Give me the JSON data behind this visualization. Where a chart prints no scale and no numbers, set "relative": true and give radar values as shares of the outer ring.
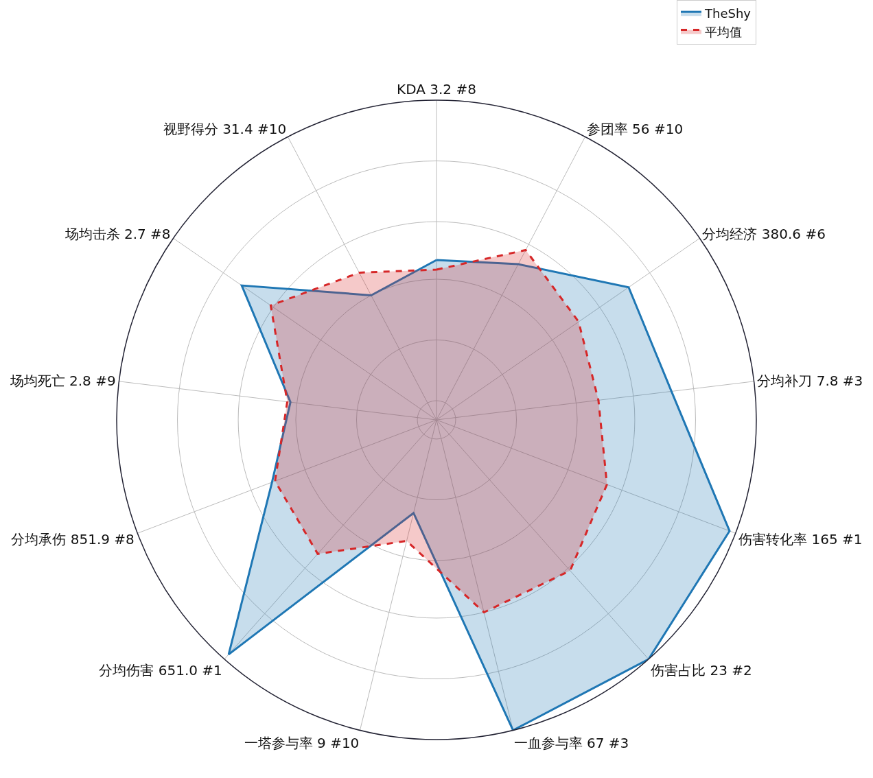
{
  "chart_data": {
    "type": "radar",
    "relative": true,
    "grid": true,
    "legend": "top right",
    "marker": "none",
    "categories": [
      "KDA 3.2 #8",
      "参团率 56 #10",
      "分均经济 380.6 #6",
      "分均补刀 7.8 #3",
      "伤害转化率 165 #1",
      "伤害占比 23 #2",
      "一血参与率 67 #3",
      "一塔参与率 9 #10",
      "分均伤害 651.0 #1",
      "分均承伤 851.9 #8",
      "场均死亡 2.8 #9",
      "场均击杀 2.7 #8",
      "视野得分 31.4 #10"
    ],
    "series": [
      {
        "name": "TheShy",
        "color": "#1f77b4",
        "line_style": "solid",
        "values": [
          0.5,
          0.55,
          0.73,
          0.74,
          0.98,
          1.0,
          1.0,
          0.3,
          0.98,
          0.55,
          0.46,
          0.74,
          0.44
        ]
      },
      {
        "name": "平均值",
        "color": "#d62728",
        "line_style": "dashed",
        "values": [
          0.47,
          0.6,
          0.54,
          0.51,
          0.57,
          0.63,
          0.62,
          0.39,
          0.56,
          0.54,
          0.47,
          0.63,
          0.52
        ]
      }
    ]
  }
}
